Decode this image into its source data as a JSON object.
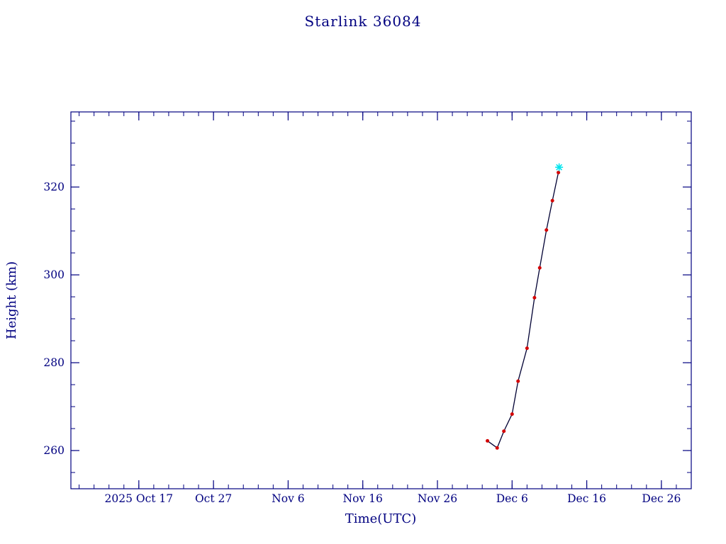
{
  "chart_data": {
    "type": "line",
    "title": "Starlink 36084",
    "xlabel": "Time(UTC)",
    "ylabel": "Height (km)",
    "x_unit": "days since 2025 Oct 17",
    "x_range": [
      -9.1,
      74.0
    ],
    "y_range": [
      251.3,
      337.1
    ],
    "x_ticks": [
      {
        "label": "2025 Oct 17",
        "day": 0
      },
      {
        "label": "Oct 27",
        "day": 10
      },
      {
        "label": "Nov 6",
        "day": 20
      },
      {
        "label": "Nov 16",
        "day": 30
      },
      {
        "label": "Nov 26",
        "day": 40
      },
      {
        "label": "Dec 6",
        "day": 50
      },
      {
        "label": "Dec 16",
        "day": 60
      },
      {
        "label": "Dec 26",
        "day": 70
      }
    ],
    "x_minor_tick_step_days": 2,
    "y_ticks": [
      260,
      280,
      300,
      320
    ],
    "y_minor_tick_step_km": 5,
    "axis_color": "#000080",
    "grid": "off",
    "legend": "none",
    "series": [
      {
        "name": "orbital-height",
        "line_color": "#000033",
        "marker_color": "#d40000",
        "points": [
          {
            "day": 46.7,
            "height_km": 262.2
          },
          {
            "day": 48.0,
            "height_km": 260.6
          },
          {
            "day": 48.9,
            "height_km": 264.4
          },
          {
            "day": 50.0,
            "height_km": 268.3
          },
          {
            "day": 50.8,
            "height_km": 275.8
          },
          {
            "day": 52.0,
            "height_km": 283.3
          },
          {
            "day": 53.0,
            "height_km": 294.8
          },
          {
            "day": 53.7,
            "height_km": 301.6
          },
          {
            "day": 54.6,
            "height_km": 310.2
          },
          {
            "day": 55.4,
            "height_km": 316.9
          },
          {
            "day": 56.2,
            "height_km": 323.3
          }
        ]
      }
    ],
    "latest_marker": {
      "name": "latest-position",
      "symbol": "asterisk",
      "color": "#00e5ee",
      "day": 56.3,
      "height_km": 324.5
    }
  }
}
